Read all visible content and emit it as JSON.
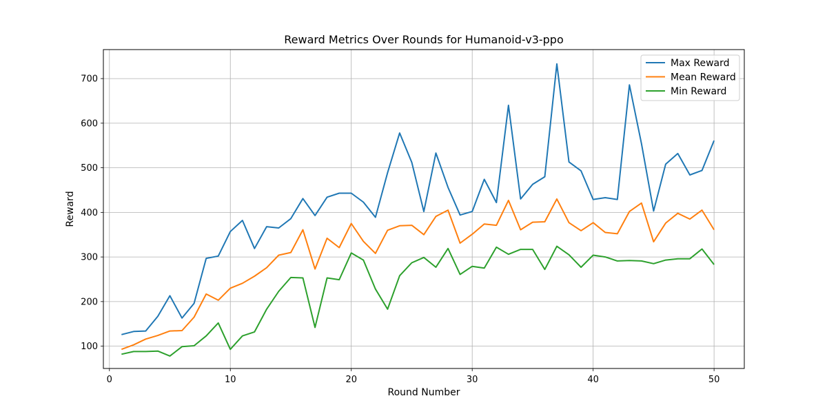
{
  "chart_data": {
    "type": "line",
    "title": "Reward Metrics Over Rounds for Humanoid-v3-ppo",
    "xlabel": "Round Number",
    "ylabel": "Reward",
    "xlim": [
      -0.5,
      52.5
    ],
    "ylim": [
      50,
      765
    ],
    "xticks": [
      0,
      10,
      20,
      30,
      40,
      50
    ],
    "yticks": [
      100,
      200,
      300,
      400,
      500,
      600,
      700
    ],
    "grid": true,
    "legend_position": "top-right",
    "x": [
      1,
      2,
      3,
      4,
      5,
      6,
      7,
      8,
      9,
      10,
      11,
      12,
      13,
      14,
      15,
      16,
      17,
      18,
      19,
      20,
      21,
      22,
      23,
      24,
      25,
      26,
      27,
      28,
      29,
      30,
      31,
      32,
      33,
      34,
      35,
      36,
      37,
      38,
      39,
      40,
      41,
      42,
      43,
      44,
      45,
      46,
      47,
      48,
      49,
      50
    ],
    "series": [
      {
        "name": "Max Reward",
        "color": "#1f77b4",
        "values": [
          126,
          133,
          134,
          167,
          213,
          163,
          196,
          297,
          302,
          357,
          382,
          319,
          368,
          365,
          386,
          431,
          393,
          434,
          443,
          443,
          423,
          389,
          489,
          578,
          512,
          402,
          533,
          456,
          394,
          402,
          474,
          422,
          640,
          430,
          463,
          480,
          733,
          513,
          493,
          429,
          433,
          429,
          686,
          554,
          403,
          508,
          532,
          484,
          494,
          561
        ]
      },
      {
        "name": "Mean Reward",
        "color": "#ff7f0e",
        "values": [
          93,
          103,
          116,
          124,
          134,
          135,
          165,
          217,
          203,
          230,
          241,
          257,
          276,
          304,
          310,
          361,
          273,
          342,
          321,
          375,
          335,
          308,
          360,
          370,
          371,
          350,
          391,
          405,
          331,
          351,
          374,
          371,
          427,
          361,
          378,
          379,
          430,
          377,
          359,
          377,
          355,
          352,
          402,
          421,
          334,
          376,
          398,
          385,
          405,
          361
        ]
      },
      {
        "name": "Min Reward",
        "color": "#2ca02c",
        "values": [
          82,
          88,
          88,
          89,
          78,
          99,
          101,
          123,
          152,
          93,
          123,
          132,
          183,
          223,
          254,
          253,
          142,
          253,
          249,
          309,
          293,
          228,
          183,
          258,
          287,
          299,
          277,
          319,
          261,
          279,
          275,
          322,
          306,
          317,
          317,
          272,
          324,
          305,
          277,
          304,
          300,
          291,
          292,
          291,
          285,
          293,
          296,
          296,
          318,
          283
        ]
      }
    ]
  }
}
